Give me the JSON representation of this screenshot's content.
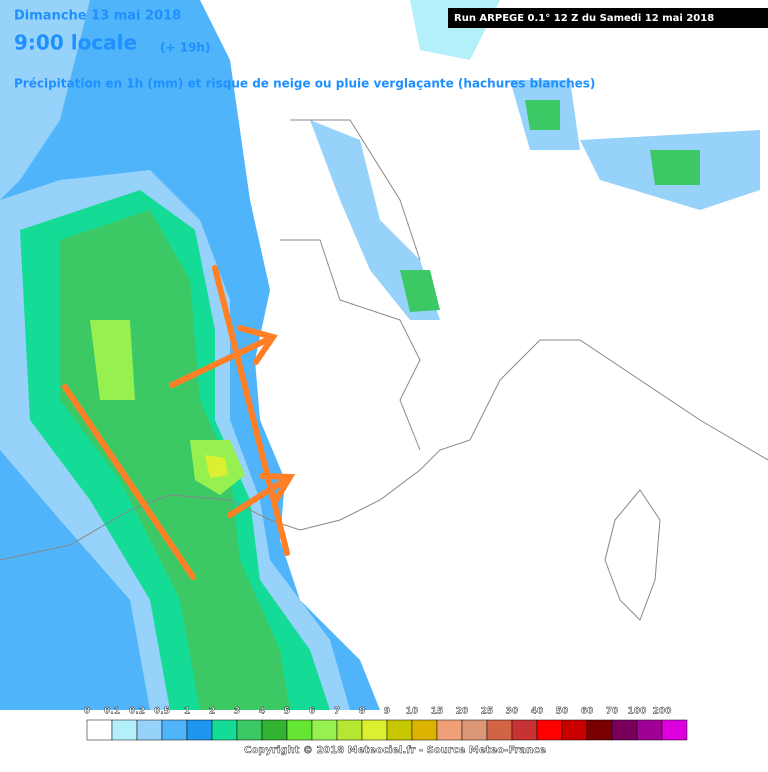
{
  "header": {
    "day": "Dimanche 13 mai 2018",
    "time": "9:00 locale",
    "lead": "(+ 19h)",
    "subtitle": "Précipitation en 1h (mm) et risque de neige ou pluie verglaçante (hachures blanches)",
    "run": "Run ARPEGE 0.1° 12 Z du Samedi 12 mai 2018"
  },
  "legend": {
    "labels": [
      "0",
      "0.1",
      "0.2",
      "0.5",
      "1",
      "2",
      "3",
      "4",
      "5",
      "6",
      "7",
      "8",
      "9",
      "10",
      "15",
      "20",
      "25",
      "30",
      "40",
      "50",
      "60",
      "70",
      "100",
      "200"
    ],
    "colors": [
      "#ffffff",
      "#b4f0fa",
      "#96d2fa",
      "#50b4fa",
      "#1e96f0",
      "#14dc96",
      "#3cc864",
      "#32b432",
      "#64e632",
      "#96f050",
      "#b4e632",
      "#dcf032",
      "#c8c800",
      "#dcb400",
      "#f0a078",
      "#dc9678",
      "#d26446",
      "#c83232",
      "#ff0000",
      "#c80000",
      "#780000",
      "#78005a",
      "#a00096",
      "#dc00dc"
    ]
  },
  "footer": {
    "copyright": "Copyright © 2018 Meteociel.fr - Source Meteo-France"
  }
}
